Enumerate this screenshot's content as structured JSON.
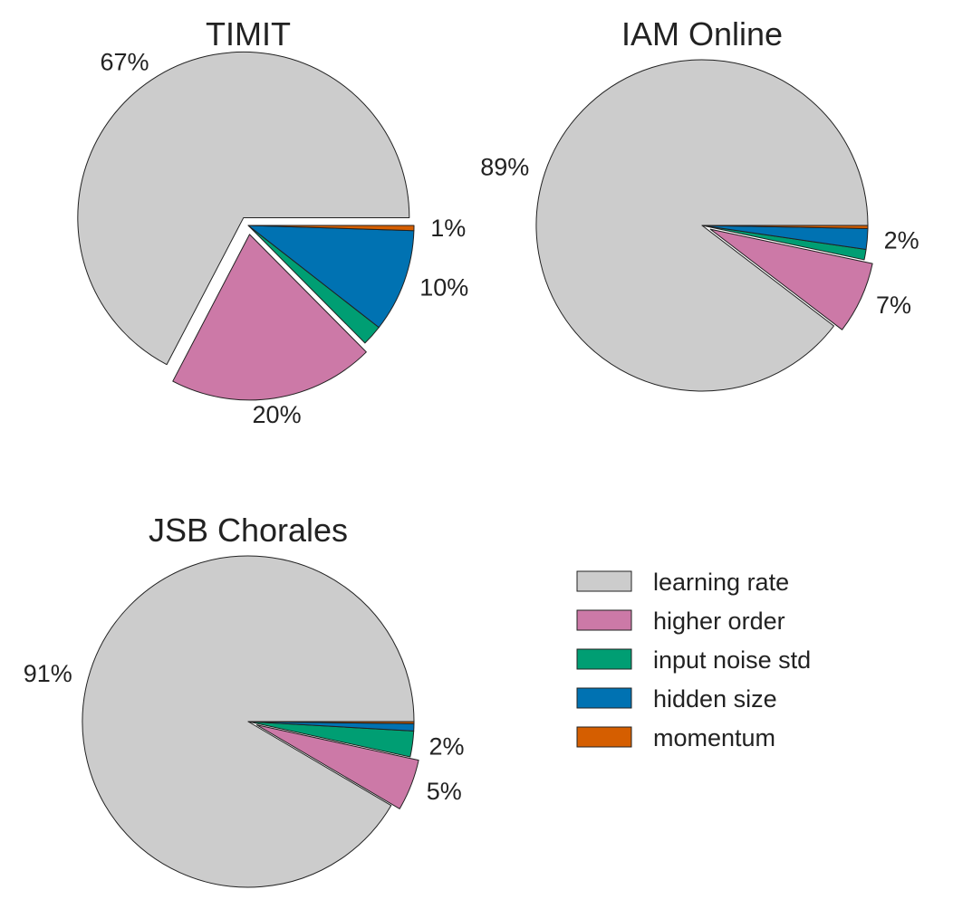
{
  "legend": {
    "placement": "lower-right",
    "entries": [
      {
        "name": "learning rate",
        "color": "#cccccc"
      },
      {
        "name": "higher order",
        "color": "#cc79a7"
      },
      {
        "name": "input noise std",
        "color": "#009e73"
      },
      {
        "name": "hidden size",
        "color": "#0072b2"
      },
      {
        "name": "momentum",
        "color": "#d55e00"
      }
    ]
  },
  "chart_data": [
    {
      "type": "pie",
      "title": "TIMIT",
      "categories": [
        "learning rate",
        "higher order",
        "input noise std",
        "hidden size",
        "momentum"
      ],
      "values": [
        67,
        20,
        2,
        10,
        0.5
      ],
      "labels": [
        "67%",
        "20%",
        "",
        "10%",
        "1%"
      ],
      "exploded": [
        "learning rate",
        "higher order"
      ]
    },
    {
      "type": "pie",
      "title": "IAM Online",
      "categories": [
        "learning rate",
        "higher order",
        "input noise std",
        "hidden size",
        "momentum"
      ],
      "values": [
        89,
        7,
        1,
        2,
        0.3
      ],
      "labels": [
        "89%",
        "7%",
        "",
        "2%",
        ""
      ],
      "exploded": [
        "higher order"
      ]
    },
    {
      "type": "pie",
      "title": "JSB Chorales",
      "categories": [
        "learning rate",
        "higher order",
        "input noise std",
        "hidden size",
        "momentum"
      ],
      "values": [
        91,
        5,
        2.5,
        0.7,
        0.2
      ],
      "labels": [
        "91%",
        "5%",
        "2%",
        "",
        ""
      ],
      "exploded": [
        "higher order"
      ]
    }
  ]
}
